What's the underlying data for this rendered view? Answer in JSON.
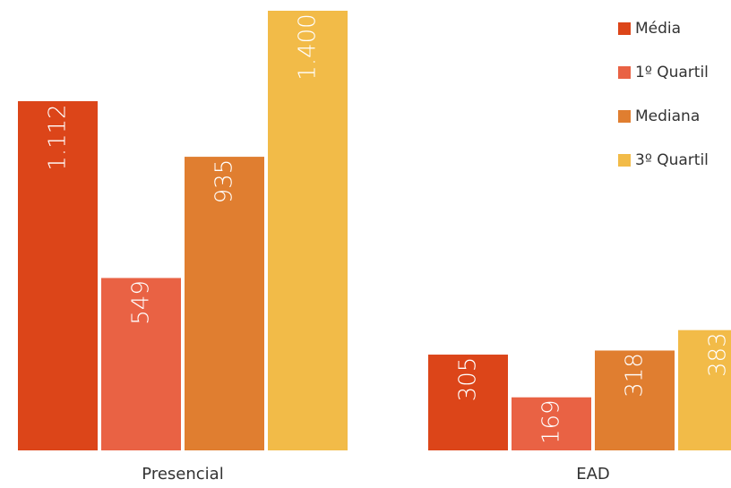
{
  "chart_data": {
    "type": "bar",
    "categories": [
      "Presencial",
      "EAD"
    ],
    "series": [
      {
        "name": "Média",
        "values": [
          1112,
          305
        ],
        "labels": [
          "1.112",
          "305"
        ],
        "color": "#dc4519"
      },
      {
        "name": "1º Quartil",
        "values": [
          549,
          169
        ],
        "labels": [
          "549",
          "169"
        ],
        "color": "#e96244"
      },
      {
        "name": "Mediana",
        "values": [
          935,
          318
        ],
        "labels": [
          "935",
          "318"
        ],
        "color": "#e07e30"
      },
      {
        "name": "3º Quartil",
        "values": [
          1400,
          383
        ],
        "labels": [
          "1.400",
          "383"
        ],
        "color": "#f2bb48"
      }
    ],
    "ylim": [
      0,
      1400
    ],
    "grid": false,
    "legend": "top-right",
    "value_labels": "inside-bar-rotated"
  }
}
